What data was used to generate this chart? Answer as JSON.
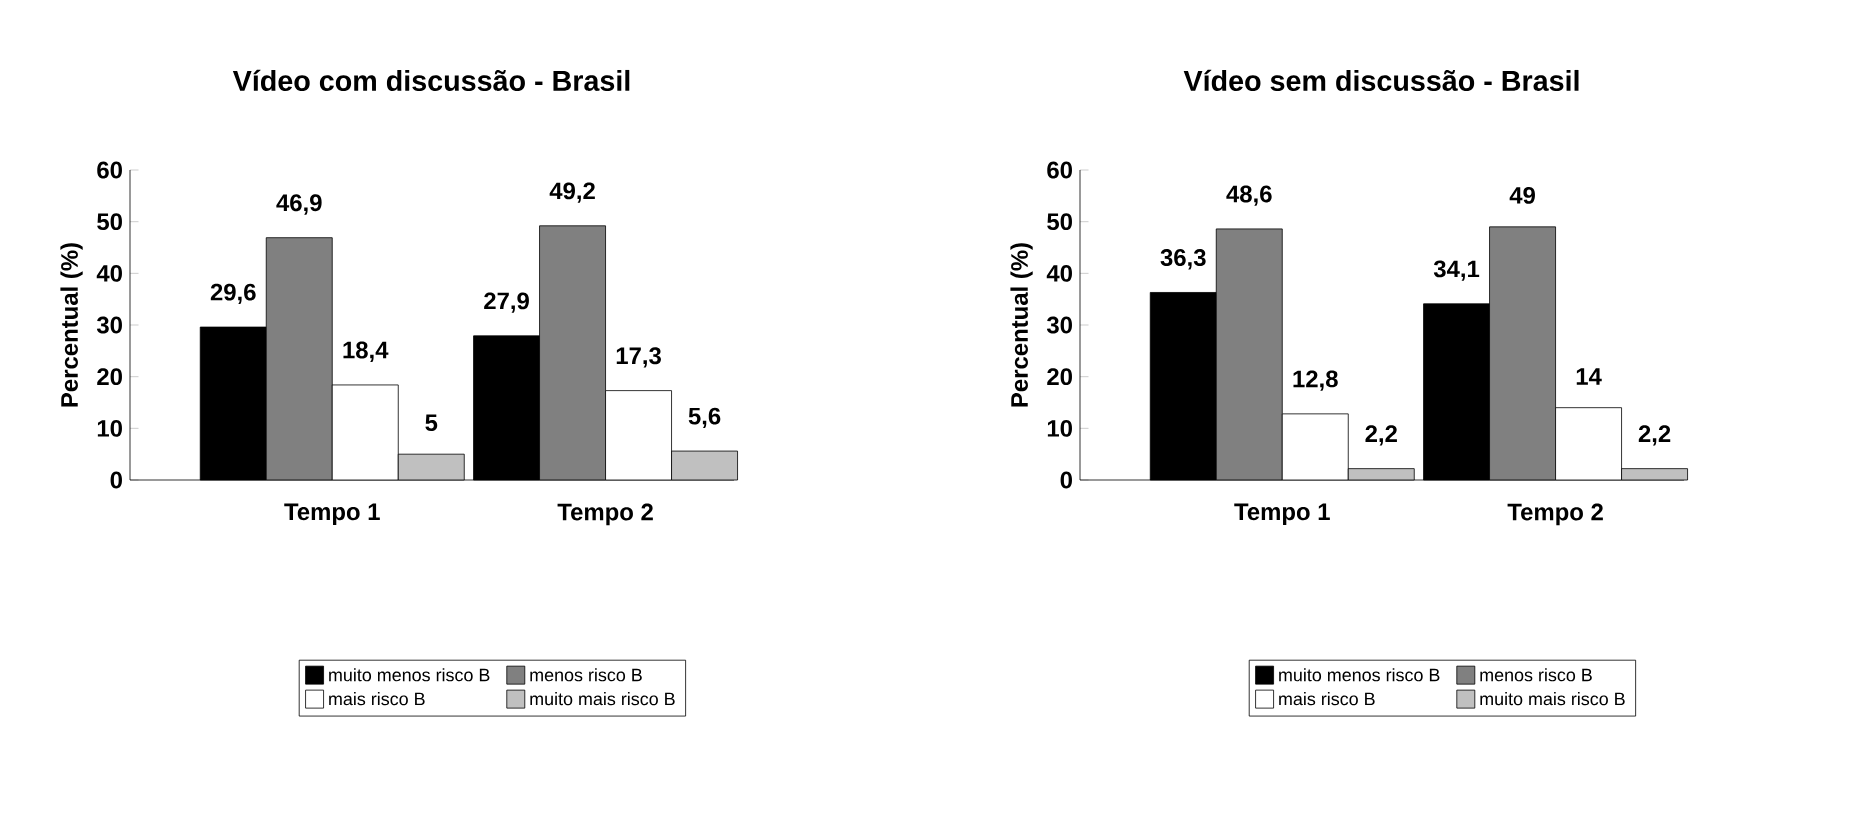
{
  "chart_data": [
    {
      "type": "bar",
      "title": "Vídeo com discussão - Brasil",
      "ylabel": "Percentual (%)",
      "categories": [
        "Tempo 1",
        "Tempo 2"
      ],
      "ylim": [
        0,
        60
      ],
      "yticks": [
        0,
        10,
        20,
        30,
        40,
        50,
        60
      ],
      "legend": "bottom",
      "series": [
        {
          "name": "muito menos risco B",
          "color": "#000000",
          "values": [
            29.6,
            27.9
          ],
          "value_labels": [
            "29,6",
            "27,9"
          ]
        },
        {
          "name": "menos risco B",
          "color": "#808080",
          "values": [
            46.9,
            49.2
          ],
          "value_labels": [
            "46,9",
            "49,2"
          ]
        },
        {
          "name": "mais risco B",
          "color": "#ffffff",
          "values": [
            18.4,
            17.3
          ],
          "value_labels": [
            "18,4",
            "17,3"
          ]
        },
        {
          "name": "muito mais risco B",
          "color": "#c0c0c0",
          "values": [
            5,
            5.6
          ],
          "value_labels": [
            "5",
            "5,6"
          ]
        }
      ]
    },
    {
      "type": "bar",
      "title": "Vídeo sem discussão - Brasil",
      "ylabel": "Percentual (%)",
      "categories": [
        "Tempo 1",
        "Tempo 2"
      ],
      "ylim": [
        0,
        60
      ],
      "yticks": [
        0,
        10,
        20,
        30,
        40,
        50,
        60
      ],
      "legend": "bottom",
      "series": [
        {
          "name": "muito menos risco B",
          "color": "#000000",
          "values": [
            36.3,
            34.1
          ],
          "value_labels": [
            "36,3",
            "34,1"
          ]
        },
        {
          "name": "menos risco B",
          "color": "#808080",
          "values": [
            48.6,
            49
          ],
          "value_labels": [
            "48,6",
            "49"
          ]
        },
        {
          "name": "mais risco B",
          "color": "#ffffff",
          "values": [
            12.8,
            14
          ],
          "value_labels": [
            "12,8",
            "14"
          ]
        },
        {
          "name": "muito mais risco B",
          "color": "#c0c0c0",
          "values": [
            2.2,
            2.2
          ],
          "value_labels": [
            "2,2",
            "2,2"
          ]
        }
      ]
    }
  ]
}
